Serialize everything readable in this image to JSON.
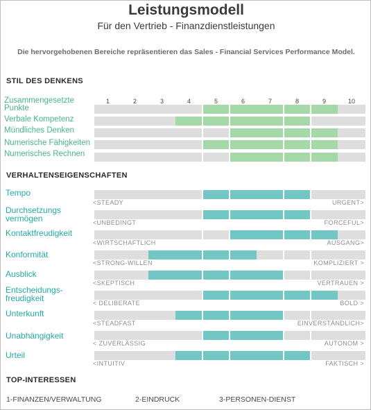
{
  "header": {
    "title": "Leistungsmodell",
    "subtitle": "Für den Vertrieb - Finanzdienstleistungen",
    "intro": "Die hervorgehobenen Bereiche repräsentieren das Sales - Financial Services Performance Model."
  },
  "sections": {
    "thinking": "STIL DES DENKENS",
    "behavior": "VERHALTENSEIGENSCHAFTEN",
    "interests": "TOP-INTERESSEN"
  },
  "colors": {
    "thinking_fill": "#a4d8a6",
    "behavior_fill": "#72c6c3",
    "thinking_label": "#48b784",
    "behavior_label": "#23aaa3",
    "track": "#dedede"
  },
  "chart_data": [
    {
      "type": "bar",
      "orientation": "horizontal-range",
      "xlim": [
        1,
        10
      ],
      "ticks": [
        "1",
        "2",
        "3",
        "4",
        "5",
        "6",
        "7",
        "8",
        "9",
        "10"
      ],
      "rows": [
        {
          "label": "Zusammengesetzte Punkte",
          "range": [
            5,
            9
          ]
        },
        {
          "label": "Verbale Kompetenz",
          "range": [
            4,
            8
          ]
        },
        {
          "label": "Mündliches Denken",
          "range": [
            6,
            9
          ]
        },
        {
          "label": "Numerische Fähigkeiten",
          "range": [
            5,
            9
          ]
        },
        {
          "label": "Numerisches Rechnen",
          "range": [
            6,
            9
          ]
        }
      ]
    },
    {
      "type": "bar",
      "orientation": "horizontal-range",
      "xlim": [
        1,
        10
      ],
      "rows": [
        {
          "label": "Tempo",
          "range": [
            5,
            8
          ],
          "left_anchor": "<STEADY",
          "right_anchor": "URGENT>"
        },
        {
          "label": "Durchsetzungs vermögen",
          "range": [
            5,
            8
          ],
          "left_anchor": "<UNBEDINGT",
          "right_anchor": "FORCEFUL>"
        },
        {
          "label": "Kontaktfreudigkeit",
          "range": [
            6,
            9
          ],
          "left_anchor": "<WIRTSCHAFTLICH",
          "right_anchor": "AUSGANG>"
        },
        {
          "label": "Konformität",
          "range": [
            3,
            6
          ],
          "left_anchor": "<STRONG-WILLEN",
          "right_anchor": "KOMPLIZIERT >"
        },
        {
          "label": "Ausblick",
          "range": [
            3,
            7
          ],
          "left_anchor": "<SKEPTISCH",
          "right_anchor": "VERTRAUEN >"
        },
        {
          "label": "Entscheidungs- freudigkeit",
          "range": [
            5,
            9
          ],
          "left_anchor": "< DELIBERATE",
          "right_anchor": "BOLD >"
        },
        {
          "label": "Unterkunft",
          "range": [
            4,
            7
          ],
          "left_anchor": "<STEADFAST",
          "right_anchor": "EINVERSTÄNDLICH>"
        },
        {
          "label": "Unabhängigkeit",
          "range": [
            5,
            7
          ],
          "left_anchor": "< ZUVERLÄSSIG",
          "right_anchor": "AUTONOM >"
        },
        {
          "label": "Urteil",
          "range": [
            4,
            8
          ],
          "left_anchor": "<INTUITIV",
          "right_anchor": "FAKTISCH >"
        }
      ]
    }
  ],
  "interests": [
    "1-FINANZEN/VERWALTUNG",
    "2-EINDRUCK",
    "3-PERSONEN-DIENST"
  ]
}
